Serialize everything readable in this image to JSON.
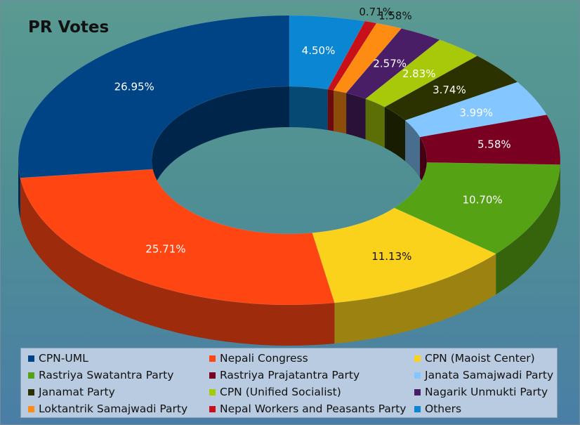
{
  "chart_data": {
    "type": "pie",
    "style": "3d-donut",
    "title": "PR Votes",
    "legend_position": "bottom",
    "slices": [
      {
        "name": "Others",
        "value": 4.5,
        "label": "4.50%",
        "color": "#0a86d2"
      },
      {
        "name": "Nepal Workers and Peasants Party",
        "value": 0.71,
        "label": "0.71%",
        "color": "#c8101a"
      },
      {
        "name": "Loktantrik Samajwadi Party",
        "value": 1.58,
        "label": "1.58%",
        "color": "#ff8c12"
      },
      {
        "name": "Nagarik Unmukti Party",
        "value": 2.57,
        "label": "2.57%",
        "color": "#4a1e66"
      },
      {
        "name": "CPN (Unified Socialist)",
        "value": 2.83,
        "label": "2.83%",
        "color": "#a8c80a"
      },
      {
        "name": "Janamat Party",
        "value": 3.74,
        "label": "3.74%",
        "color": "#2b3200"
      },
      {
        "name": "Janata Samajwadi Party",
        "value": 3.99,
        "label": "3.99%",
        "color": "#84c6ff"
      },
      {
        "name": "Rastriya Prajatantra Party",
        "value": 5.58,
        "label": "5.58%",
        "color": "#7a0022"
      },
      {
        "name": "Rastriya Swatantra Party",
        "value": 10.7,
        "label": "10.70%",
        "color": "#55a215"
      },
      {
        "name": "CPN (Maoist Center)",
        "value": 11.13,
        "label": "11.13%",
        "color": "#fbd21b"
      },
      {
        "name": "Nepali Congress",
        "value": 25.71,
        "label": "25.71%",
        "color": "#ff4512"
      },
      {
        "name": "CPN-UML",
        "value": 26.95,
        "label": "26.95%",
        "color": "#004486"
      }
    ]
  },
  "legend": [
    {
      "label": "CPN-UML",
      "color": "#004486"
    },
    {
      "label": "Nepali Congress",
      "color": "#ff4512"
    },
    {
      "label": "CPN (Maoist Center)",
      "color": "#fbd21b"
    },
    {
      "label": "Rastriya Swatantra Party",
      "color": "#55a215"
    },
    {
      "label": "Rastriya Prajatantra Party",
      "color": "#7a0022"
    },
    {
      "label": "Janata Samajwadi Party",
      "color": "#84c6ff"
    },
    {
      "label": "Janamat Party",
      "color": "#2b3200"
    },
    {
      "label": "CPN (Unified Socialist)",
      "color": "#a8c80a"
    },
    {
      "label": "Nagarik Unmukti Party",
      "color": "#4a1e66"
    },
    {
      "label": "Loktantrik Samajwadi Party",
      "color": "#ff8c12"
    },
    {
      "label": "Nepal Workers and Peasants Party",
      "color": "#c8101a"
    },
    {
      "label": "Others",
      "color": "#0a86d2"
    }
  ]
}
